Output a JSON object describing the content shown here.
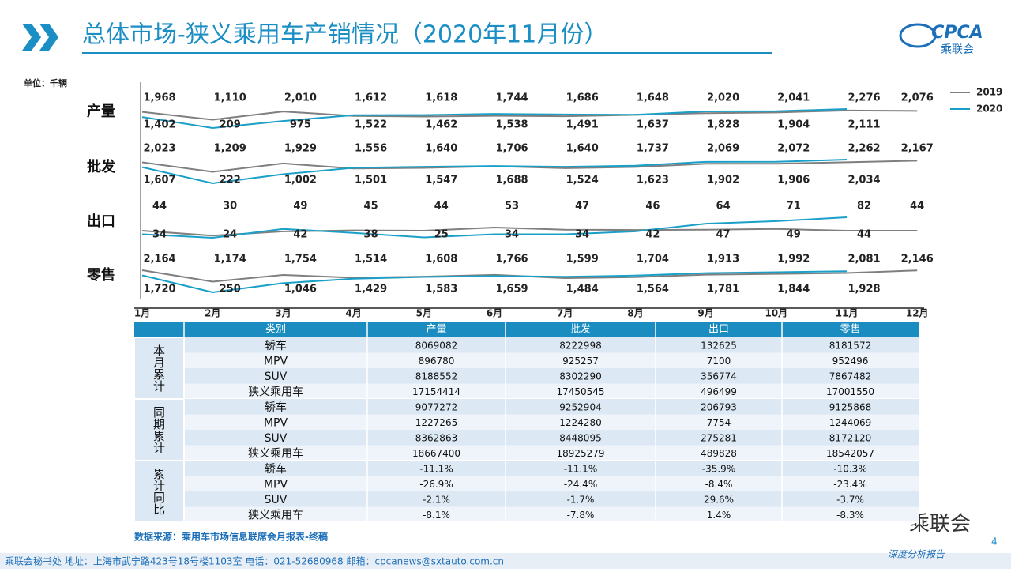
{
  "header": {
    "title": "总体市场-狭义乘用车产销情况（2020年11月份）",
    "logo": "CPCA",
    "logo_sub": "乘联会",
    "unit": "单位：千辆"
  },
  "chart_data": {
    "type": "line",
    "categories": [
      "1月",
      "2月",
      "3月",
      "4月",
      "5月",
      "6月",
      "7月",
      "8月",
      "9月",
      "10月",
      "11月",
      "12月"
    ],
    "series": [
      {
        "name": "2019",
        "color": "#7f7f7f"
      },
      {
        "name": "2020",
        "color": "#1aa0c8"
      }
    ],
    "panels": [
      {
        "label": "产量",
        "series": [
          {
            "values": [
              1968,
              1110,
              2010,
              1522,
              1462,
              1538,
              1491,
              1637,
              1828,
              1904,
              2111,
              2076
            ],
            "value_labels": [
              "1,968",
              "1,110",
              "2,010",
              "1,522",
              "1,462",
              "1,538",
              "1,491",
              "1,637",
              "1,828",
              "1,904",
              "2,111",
              "2,076"
            ]
          },
          {
            "values": [
              1402,
              209,
              975,
              1612,
              1618,
              1744,
              1686,
              1648,
              2020,
              2041,
              2276,
              null
            ],
            "value_labels": [
              "1,402",
              "209",
              "975",
              "1,612",
              "1,618",
              "1,744",
              "1,686",
              "1,648",
              "2,020",
              "2,041",
              "2,276",
              null
            ]
          }
        ]
      },
      {
        "label": "批发",
        "series": [
          {
            "values": [
              2023,
              1209,
              1929,
              1501,
              1547,
              1688,
              1524,
              1623,
              1902,
              1906,
              2034,
              2167
            ],
            "value_labels": [
              "2,023",
              "1,209",
              "1,929",
              "1,501",
              "1,547",
              "1,688",
              "1,524",
              "1,623",
              "1,902",
              "1,906",
              "2,034",
              "2,167"
            ]
          },
          {
            "values": [
              1607,
              222,
              1002,
              1556,
              1640,
              1706,
              1640,
              1737,
              2069,
              2072,
              2262,
              null
            ],
            "value_labels": [
              "1,607",
              "222",
              "1,002",
              "1,556",
              "1,640",
              "1,706",
              "1,640",
              "1,737",
              "2,069",
              "2,072",
              "2,262",
              null
            ]
          }
        ]
      },
      {
        "label": "出口",
        "series": [
          {
            "values": [
              44,
              30,
              42,
              45,
              44,
              53,
              47,
              46,
              47,
              49,
              44,
              44
            ]
          },
          {
            "values": [
              34,
              24,
              49,
              38,
              25,
              34,
              34,
              42,
              64,
              71,
              82,
              null
            ]
          }
        ]
      },
      {
        "label": "零售",
        "series": [
          {
            "values": [
              2164,
              1174,
              1754,
              1514,
              1608,
              1766,
              1484,
              1564,
              1781,
              1844,
              1928,
              2146
            ],
            "value_labels": [
              "2,164",
              "1,174",
              "1,754",
              "1,514",
              "1,608",
              "1,766",
              "1,484",
              "1,564",
              "1,781",
              "1,844",
              "1,928",
              "2,146"
            ]
          },
          {
            "values": [
              1720,
              250,
              1046,
              1429,
              1583,
              1659,
              1599,
              1704,
              1913,
              1992,
              2081,
              null
            ],
            "value_labels": [
              "1,720",
              "250",
              "1,046",
              "1,429",
              "1,583",
              "1,659",
              "1,599",
              "1,704",
              "1,913",
              "1,992",
              "2,081",
              null
            ]
          }
        ]
      }
    ]
  },
  "table": {
    "header": [
      "类别",
      "产量",
      "批发",
      "出口",
      "零售"
    ],
    "groups": [
      {
        "label": "本月累计",
        "rows": [
          [
            "轿车",
            "8069082",
            "8222998",
            "132625",
            "8181572"
          ],
          [
            "MPV",
            "896780",
            "925257",
            "7100",
            "952496"
          ],
          [
            "SUV",
            "8188552",
            "8302290",
            "356774",
            "7867482"
          ],
          [
            "狭义乘用车",
            "17154414",
            "17450545",
            "496499",
            "17001550"
          ]
        ]
      },
      {
        "label": "同期累计",
        "rows": [
          [
            "轿车",
            "9077272",
            "9252904",
            "206793",
            "9125868"
          ],
          [
            "MPV",
            "1227265",
            "1224280",
            "7754",
            "1244069"
          ],
          [
            "SUV",
            "8362863",
            "8448095",
            "275281",
            "8172120"
          ],
          [
            "狭义乘用车",
            "18667400",
            "18925279",
            "489828",
            "18542057"
          ]
        ]
      },
      {
        "label": "累计同比",
        "rows": [
          [
            "轿车",
            "-11.1%",
            "-11.1%",
            "-35.9%",
            "-10.3%"
          ],
          [
            "MPV",
            "-26.9%",
            "-24.4%",
            "-8.4%",
            "-23.4%"
          ],
          [
            "SUV",
            "-2.1%",
            "-1.7%",
            "29.6%",
            "-3.7%"
          ],
          [
            "狭义乘用车",
            "-8.1%",
            "-7.8%",
            "1.4%",
            "-8.3%"
          ]
        ]
      }
    ]
  },
  "footer": {
    "source": "数据来源：乘用车市场信息联席会月报表-终稿",
    "contact": "乘联会秘书处   地址：上海市武宁路423号18号楼1103室   电话：021-52680968   邮箱：cpcanews@sxtauto.com.cn",
    "page": "4",
    "wechat": "乘联会",
    "report": "深度分析报告"
  }
}
